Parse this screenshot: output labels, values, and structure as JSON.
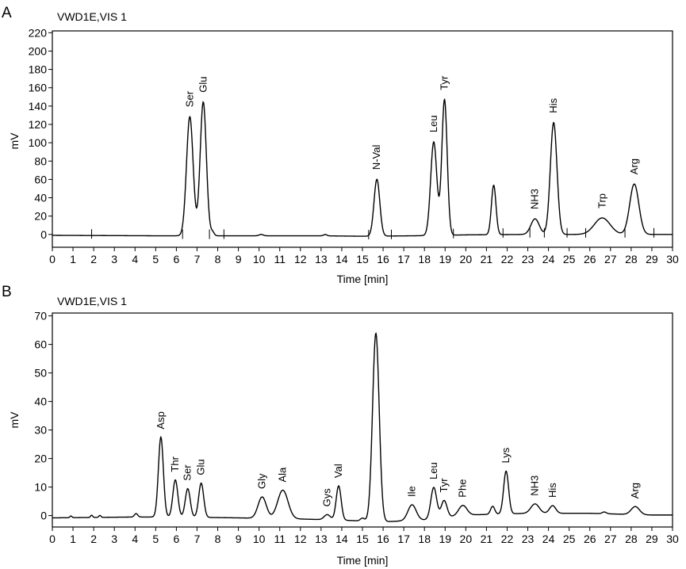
{
  "chart_data": [
    {
      "type": "line",
      "panel": "A",
      "title": "VWD1E,VIS 1",
      "xlabel": "Time [min]",
      "ylabel": "mV",
      "xlim": [
        0,
        30
      ],
      "ylim": [
        -14,
        222
      ],
      "x_ticks": [
        0,
        1,
        2,
        3,
        4,
        5,
        6,
        7,
        8,
        9,
        10,
        11,
        12,
        13,
        14,
        15,
        16,
        17,
        18,
        19,
        20,
        21,
        22,
        23,
        24,
        25,
        26,
        27,
        28,
        29,
        30
      ],
      "y_ticks": [
        0,
        20,
        40,
        60,
        80,
        100,
        120,
        140,
        160,
        180,
        200,
        220
      ],
      "grid": false,
      "baseline": [
        [
          0,
          -1
        ],
        [
          5,
          -1.5
        ],
        [
          10,
          -1.5
        ],
        [
          13,
          -1.5
        ],
        [
          15,
          -2
        ],
        [
          17.5,
          -1.5
        ],
        [
          20,
          -0.5
        ],
        [
          23,
          0
        ],
        [
          26,
          0
        ],
        [
          30,
          0
        ]
      ],
      "peaks": [
        {
          "label": "Ser",
          "time": 6.65,
          "height": 130,
          "width": 0.16
        },
        {
          "label": "Glu",
          "time": 7.3,
          "height": 146,
          "width": 0.15
        },
        {
          "label": "",
          "time": 7.75,
          "height": 4,
          "width": 0.08
        },
        {
          "label": "",
          "time": 10.1,
          "height": 1.5,
          "width": 0.1
        },
        {
          "label": "",
          "time": 13.2,
          "height": 1.5,
          "width": 0.08
        },
        {
          "label": "N-Val",
          "time": 15.7,
          "height": 62,
          "width": 0.14
        },
        {
          "label": "Leu",
          "time": 18.45,
          "height": 102,
          "width": 0.15
        },
        {
          "label": "Tyr",
          "time": 18.97,
          "height": 148,
          "width": 0.13
        },
        {
          "label": "",
          "time": 21.35,
          "height": 54,
          "width": 0.11
        },
        {
          "label": "NH3",
          "time": 23.35,
          "height": 17,
          "width": 0.2
        },
        {
          "label": "His",
          "time": 24.25,
          "height": 122,
          "width": 0.16
        },
        {
          "label": "Trp",
          "time": 26.6,
          "height": 18,
          "width": 0.38
        },
        {
          "label": "Arg",
          "time": 28.15,
          "height": 55,
          "width": 0.22
        }
      ],
      "event_markers": [
        1.9,
        6.3,
        7.6,
        8.3,
        15.3,
        16.4,
        19.4,
        21.8,
        23.1,
        23.8,
        24.9,
        25.8,
        27.7,
        29.1
      ]
    },
    {
      "type": "line",
      "panel": "B",
      "title": "VWD1E,VIS 1",
      "xlabel": "Time [min]",
      "ylabel": "mV",
      "xlim": [
        0,
        30
      ],
      "ylim": [
        -4,
        71
      ],
      "x_ticks": [
        0,
        1,
        2,
        3,
        4,
        5,
        6,
        7,
        8,
        9,
        10,
        11,
        12,
        13,
        14,
        15,
        16,
        17,
        18,
        19,
        20,
        21,
        22,
        23,
        24,
        25,
        26,
        27,
        28,
        29,
        30
      ],
      "y_ticks": [
        0,
        10,
        20,
        30,
        40,
        50,
        60,
        70
      ],
      "grid": false,
      "baseline": [
        [
          0,
          -0.8
        ],
        [
          4,
          -0.5
        ],
        [
          6,
          -0.5
        ],
        [
          9,
          -0.8
        ],
        [
          12,
          -1.2
        ],
        [
          14,
          -1.6
        ],
        [
          16,
          -2.2
        ],
        [
          18,
          -1.5
        ],
        [
          20,
          0.2
        ],
        [
          23,
          0.8
        ],
        [
          26,
          0.8
        ],
        [
          29,
          0.2
        ],
        [
          30,
          0.2
        ]
      ],
      "peaks": [
        {
          "label": "",
          "time": 0.9,
          "height": 0.6,
          "width": 0.05
        },
        {
          "label": "",
          "time": 1.9,
          "height": 0.8,
          "width": 0.05
        },
        {
          "label": "",
          "time": 2.3,
          "height": 0.7,
          "width": 0.05
        },
        {
          "label": "",
          "time": 4.05,
          "height": 1.2,
          "width": 0.08
        },
        {
          "label": "Asp",
          "time": 5.25,
          "height": 28,
          "width": 0.12
        },
        {
          "label": "Thr",
          "time": 5.95,
          "height": 13,
          "width": 0.12
        },
        {
          "label": "Ser",
          "time": 6.55,
          "height": 10,
          "width": 0.12
        },
        {
          "label": "Glu",
          "time": 7.2,
          "height": 12,
          "width": 0.12
        },
        {
          "label": "Gly",
          "time": 10.15,
          "height": 7.5,
          "width": 0.2
        },
        {
          "label": "Ala",
          "time": 11.15,
          "height": 10,
          "width": 0.25
        },
        {
          "label": "Gys",
          "time": 13.3,
          "height": 1.8,
          "width": 0.15
        },
        {
          "label": "Val",
          "time": 13.85,
          "height": 12,
          "width": 0.12
        },
        {
          "label": "",
          "time": 15.0,
          "height": 1,
          "width": 0.1
        },
        {
          "label": "",
          "time": 15.65,
          "height": 66,
          "width": 0.16
        },
        {
          "label": "Ile",
          "time": 17.4,
          "height": 5.5,
          "width": 0.2
        },
        {
          "label": "Leu",
          "time": 18.45,
          "height": 11,
          "width": 0.14
        },
        {
          "label": "Tyr",
          "time": 18.95,
          "height": 6,
          "width": 0.14
        },
        {
          "label": "Phe",
          "time": 19.85,
          "height": 3.5,
          "width": 0.2
        },
        {
          "label": "",
          "time": 21.3,
          "height": 2.8,
          "width": 0.1
        },
        {
          "label": "Lys",
          "time": 21.95,
          "height": 15,
          "width": 0.12
        },
        {
          "label": "NH3",
          "time": 23.35,
          "height": 3.3,
          "width": 0.2
        },
        {
          "label": "His",
          "time": 24.2,
          "height": 2.7,
          "width": 0.15
        },
        {
          "label": "",
          "time": 26.7,
          "height": 0.6,
          "width": 0.1
        },
        {
          "label": "Arg",
          "time": 28.2,
          "height": 2.8,
          "width": 0.2
        }
      ],
      "event_markers": []
    }
  ]
}
